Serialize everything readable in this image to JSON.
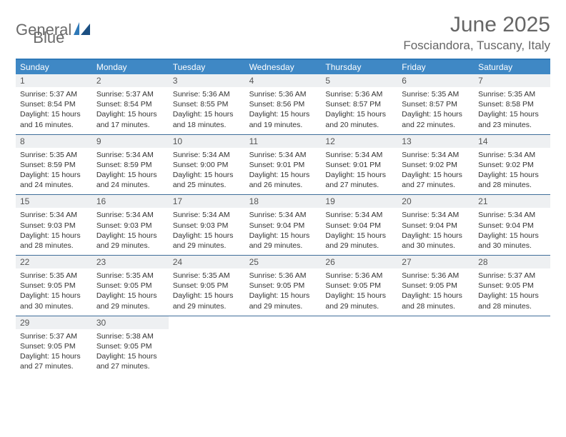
{
  "brand": {
    "word1": "General",
    "word2": "Blue"
  },
  "title": "June 2025",
  "location": "Fosciandora, Tuscany, Italy",
  "colors": {
    "header_bg": "#3f88c5",
    "header_text": "#ffffff",
    "rule": "#3f6e9a",
    "daynum_bg": "#eef0f2",
    "text": "#333333",
    "muted": "#666666",
    "logo_gray": "#6a6a6a",
    "logo_blue": "#2f79b8",
    "page_bg": "#ffffff"
  },
  "typography": {
    "title_fontsize": 30,
    "location_fontsize": 17,
    "header_fontsize": 12,
    "daynum_fontsize": 12,
    "body_fontsize": 10.5
  },
  "weekdays": [
    "Sunday",
    "Monday",
    "Tuesday",
    "Wednesday",
    "Thursday",
    "Friday",
    "Saturday"
  ],
  "days": [
    {
      "n": "1",
      "sr": "5:37 AM",
      "ss": "8:54 PM",
      "dl": "15 hours and 16 minutes."
    },
    {
      "n": "2",
      "sr": "5:37 AM",
      "ss": "8:54 PM",
      "dl": "15 hours and 17 minutes."
    },
    {
      "n": "3",
      "sr": "5:36 AM",
      "ss": "8:55 PM",
      "dl": "15 hours and 18 minutes."
    },
    {
      "n": "4",
      "sr": "5:36 AM",
      "ss": "8:56 PM",
      "dl": "15 hours and 19 minutes."
    },
    {
      "n": "5",
      "sr": "5:36 AM",
      "ss": "8:57 PM",
      "dl": "15 hours and 20 minutes."
    },
    {
      "n": "6",
      "sr": "5:35 AM",
      "ss": "8:57 PM",
      "dl": "15 hours and 22 minutes."
    },
    {
      "n": "7",
      "sr": "5:35 AM",
      "ss": "8:58 PM",
      "dl": "15 hours and 23 minutes."
    },
    {
      "n": "8",
      "sr": "5:35 AM",
      "ss": "8:59 PM",
      "dl": "15 hours and 24 minutes."
    },
    {
      "n": "9",
      "sr": "5:34 AM",
      "ss": "8:59 PM",
      "dl": "15 hours and 24 minutes."
    },
    {
      "n": "10",
      "sr": "5:34 AM",
      "ss": "9:00 PM",
      "dl": "15 hours and 25 minutes."
    },
    {
      "n": "11",
      "sr": "5:34 AM",
      "ss": "9:01 PM",
      "dl": "15 hours and 26 minutes."
    },
    {
      "n": "12",
      "sr": "5:34 AM",
      "ss": "9:01 PM",
      "dl": "15 hours and 27 minutes."
    },
    {
      "n": "13",
      "sr": "5:34 AM",
      "ss": "9:02 PM",
      "dl": "15 hours and 27 minutes."
    },
    {
      "n": "14",
      "sr": "5:34 AM",
      "ss": "9:02 PM",
      "dl": "15 hours and 28 minutes."
    },
    {
      "n": "15",
      "sr": "5:34 AM",
      "ss": "9:03 PM",
      "dl": "15 hours and 28 minutes."
    },
    {
      "n": "16",
      "sr": "5:34 AM",
      "ss": "9:03 PM",
      "dl": "15 hours and 29 minutes."
    },
    {
      "n": "17",
      "sr": "5:34 AM",
      "ss": "9:03 PM",
      "dl": "15 hours and 29 minutes."
    },
    {
      "n": "18",
      "sr": "5:34 AM",
      "ss": "9:04 PM",
      "dl": "15 hours and 29 minutes."
    },
    {
      "n": "19",
      "sr": "5:34 AM",
      "ss": "9:04 PM",
      "dl": "15 hours and 29 minutes."
    },
    {
      "n": "20",
      "sr": "5:34 AM",
      "ss": "9:04 PM",
      "dl": "15 hours and 30 minutes."
    },
    {
      "n": "21",
      "sr": "5:34 AM",
      "ss": "9:04 PM",
      "dl": "15 hours and 30 minutes."
    },
    {
      "n": "22",
      "sr": "5:35 AM",
      "ss": "9:05 PM",
      "dl": "15 hours and 30 minutes."
    },
    {
      "n": "23",
      "sr": "5:35 AM",
      "ss": "9:05 PM",
      "dl": "15 hours and 29 minutes."
    },
    {
      "n": "24",
      "sr": "5:35 AM",
      "ss": "9:05 PM",
      "dl": "15 hours and 29 minutes."
    },
    {
      "n": "25",
      "sr": "5:36 AM",
      "ss": "9:05 PM",
      "dl": "15 hours and 29 minutes."
    },
    {
      "n": "26",
      "sr": "5:36 AM",
      "ss": "9:05 PM",
      "dl": "15 hours and 29 minutes."
    },
    {
      "n": "27",
      "sr": "5:36 AM",
      "ss": "9:05 PM",
      "dl": "15 hours and 28 minutes."
    },
    {
      "n": "28",
      "sr": "5:37 AM",
      "ss": "9:05 PM",
      "dl": "15 hours and 28 minutes."
    },
    {
      "n": "29",
      "sr": "5:37 AM",
      "ss": "9:05 PM",
      "dl": "15 hours and 27 minutes."
    },
    {
      "n": "30",
      "sr": "5:38 AM",
      "ss": "9:05 PM",
      "dl": "15 hours and 27 minutes."
    }
  ],
  "labels": {
    "sunrise": "Sunrise:",
    "sunset": "Sunset:",
    "daylight": "Daylight:"
  }
}
